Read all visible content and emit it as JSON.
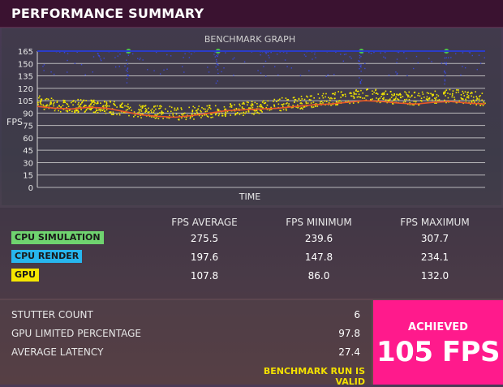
{
  "header": {
    "title": "PERFORMANCE SUMMARY"
  },
  "graph": {
    "title": "BENCHMARK GRAPH",
    "xlabel": "TIME",
    "ylabel": "FPS",
    "colors": {
      "gpu": "#f2e600",
      "average": "#e8582a",
      "cpu_line": "#2b3cc9",
      "cpu_dots": "#3a4ad8",
      "sim": "#4cc84c",
      "grid": "#d8d8d8"
    }
  },
  "chart_data": {
    "type": "scatter",
    "title": "BENCHMARK GRAPH",
    "xlabel": "TIME",
    "ylabel": "FPS",
    "ylim": [
      0,
      165
    ],
    "yticks": [
      0,
      15,
      30,
      45,
      60,
      75,
      90,
      105,
      120,
      135,
      150,
      165
    ],
    "grid": true,
    "series": [
      {
        "name": "GPU",
        "values": [
          104,
          101,
          99,
          100,
          98,
          95,
          93,
          92,
          90,
          91,
          93,
          95,
          96,
          98,
          101,
          103,
          105,
          108,
          110,
          112,
          111,
          109,
          108,
          110,
          112,
          110,
          107
        ]
      },
      {
        "name": "",
        "values": [
          98,
          96,
          95,
          97,
          96,
          92,
          88,
          86,
          85,
          87,
          90,
          93,
          94,
          95,
          96,
          98,
          100,
          101,
          103,
          105,
          104,
          102,
          101,
          103,
          104,
          102,
          101
        ]
      },
      {
        "name": "",
        "values": [
          165,
          165,
          165,
          165,
          165,
          165,
          165,
          165,
          165,
          165,
          165,
          165,
          165,
          165,
          165,
          165,
          165,
          165,
          165,
          165,
          165,
          165,
          165,
          165,
          165,
          165,
          165
        ]
      }
    ]
  },
  "results": {
    "columns": [
      "FPS AVERAGE",
      "FPS MINIMUM",
      "FPS MAXIMUM"
    ],
    "rows": [
      {
        "label": "CPU SIMULATION",
        "color": "#6fd36f",
        "values": [
          "275.5",
          "239.6",
          "307.7"
        ]
      },
      {
        "label": "CPU RENDER",
        "color": "#27b6ee",
        "values": [
          "197.6",
          "147.8",
          "234.1"
        ]
      },
      {
        "label": "GPU",
        "color": "#f4e600",
        "values": [
          "107.8",
          "86.0",
          "132.0"
        ]
      }
    ]
  },
  "stats": {
    "items": [
      {
        "label": "STUTTER COUNT",
        "value": "6"
      },
      {
        "label": "GPU LIMITED PERCENTAGE",
        "value": "97.8"
      },
      {
        "label": "AVERAGE LATENCY",
        "value": "27.4"
      }
    ],
    "valid_text": "BENCHMARK RUN IS VALID"
  },
  "achieved": {
    "label": "ACHIEVED",
    "value": "105 FPS"
  }
}
